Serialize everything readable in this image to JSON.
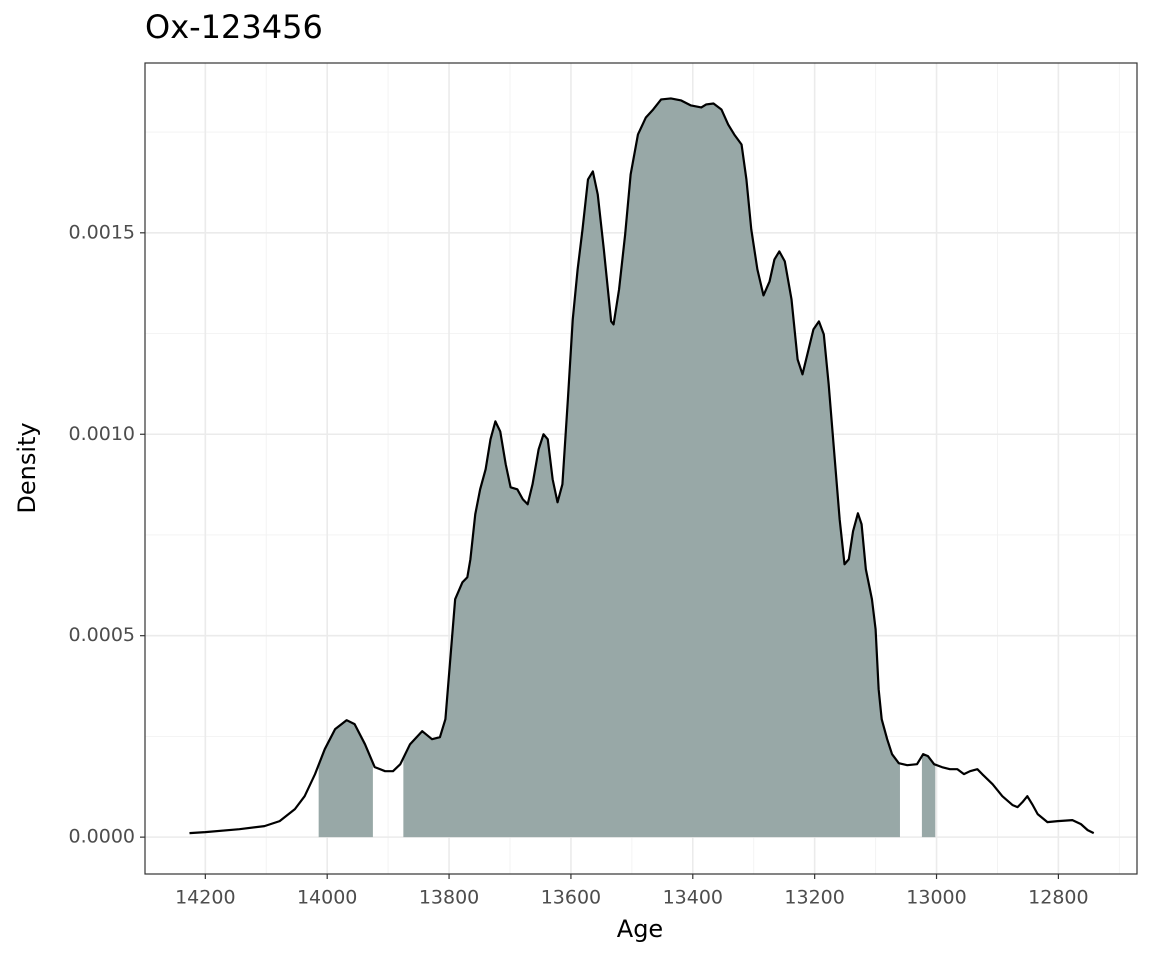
{
  "chart_data": {
    "type": "density",
    "title": "Ox-123456",
    "xlabel": "Age",
    "ylabel": "Density",
    "xlim": [
      14299,
      12671
    ],
    "xticks": [
      14200,
      14000,
      13800,
      13600,
      13400,
      13200,
      13000,
      12800
    ],
    "ylim": [
      -9.15e-05,
      0.0019215
    ],
    "yticks": [
      {
        "value": 0,
        "label": "0.0000"
      },
      {
        "value": 0.0005,
        "label": "0.0005"
      },
      {
        "value": 0.001,
        "label": "0.0010"
      },
      {
        "value": 0.0015,
        "label": "0.0015"
      }
    ],
    "grid": true,
    "minor_grid": true,
    "line_color": "#000000",
    "fill_color": "#98a8a7",
    "intervals": [
      [
        14014,
        13925
      ],
      [
        13875,
        13060
      ],
      [
        13024,
        13002
      ]
    ],
    "x": [
      14226,
      14200,
      14144,
      14103,
      14078,
      14053,
      14037,
      14020,
      14004,
      13987,
      13968,
      13955,
      13938,
      13922,
      13905,
      13892,
      13880,
      13864,
      13844,
      13828,
      13815,
      13806,
      13798,
      13790,
      13778,
      13770,
      13765,
      13757,
      13749,
      13740,
      13732,
      13724,
      13716,
      13707,
      13699,
      13688,
      13679,
      13671,
      13663,
      13653,
      13645,
      13638,
      13630,
      13622,
      13614,
      13605,
      13597,
      13589,
      13581,
      13572,
      13564,
      13556,
      13546,
      13534,
      13530,
      13521,
      13511,
      13502,
      13490,
      13477,
      13465,
      13452,
      13436,
      13419,
      13403,
      13386,
      13378,
      13366,
      13353,
      13342,
      13332,
      13320,
      13312,
      13304,
      13294,
      13284,
      13274,
      13266,
      13258,
      13249,
      13238,
      13228,
      13220,
      13212,
      13202,
      13193,
      13185,
      13177,
      13167,
      13159,
      13151,
      13144,
      13137,
      13129,
      13123,
      13116,
      13106,
      13100,
      13095,
      13090,
      13081,
      13073,
      13062,
      13048,
      13032,
      13022,
      13014,
      13004,
      12991,
      12978,
      12966,
      12955,
      12945,
      12933,
      12925,
      12908,
      12892,
      12875,
      12867,
      12859,
      12851,
      12843,
      12834,
      12818,
      12801,
      12777,
      12763,
      12752,
      12742
    ],
    "values": [
      9.9e-06,
      1.24e-05,
      1.98e-05,
      2.73e-05,
      3.97e-05,
      6.95e-05,
      0.0001017,
      0.0001563,
      0.0002183,
      0.000268,
      0.0002903,
      0.0002804,
      0.0002307,
      0.0001737,
      0.0001637,
      0.0001637,
      0.0001811,
      0.0002307,
      0.000263,
      0.0002431,
      0.0002481,
      0.0002928,
      0.0004416,
      0.0005905,
      0.0006327,
      0.0006451,
      0.0006897,
      0.0008014,
      0.0008634,
      0.000913,
      0.0009874,
      0.001032,
      0.001007,
      0.0009254,
      0.0008684,
      0.0008634,
      0.0008386,
      0.0008262,
      0.0008758,
      0.0009626,
      0.001,
      0.0009874,
      0.0008882,
      0.0008311,
      0.0008758,
      0.0010867,
      0.0012852,
      0.0014092,
      0.0015084,
      0.0016325,
      0.0016523,
      0.0015953,
      0.0014588,
      0.0012802,
      0.0012727,
      0.0013596,
      0.001496,
      0.0016449,
      0.0017441,
      0.0017863,
      0.0018062,
      0.001831,
      0.0018335,
      0.0018285,
      0.0018161,
      0.0018111,
      0.0018186,
      0.001821,
      0.0018062,
      0.001769,
      0.0017441,
      0.0017193,
      0.0016325,
      0.0015084,
      0.0014092,
      0.0013447,
      0.0013794,
      0.001434,
      0.0014539,
      0.0014291,
      0.0013348,
      0.0011859,
      0.0011487,
      0.0011983,
      0.0012603,
      0.0012802,
      0.0012479,
      0.0011239,
      0.0009378,
      0.000789,
      0.0006773,
      0.0006897,
      0.0007592,
      0.0008038,
      0.0007766,
      0.0006649,
      0.0005905,
      0.0005161,
      0.0003672,
      0.0002928,
      0.0002431,
      0.0002059,
      0.0001836,
      0.0001786,
      0.0001811,
      0.0002059,
      0.000201,
      0.0001811,
      0.0001737,
      0.0001687,
      0.0001687,
      0.0001563,
      0.0001637,
      0.0001687,
      0.0001563,
      0.0001315,
      0.0001017,
      7.94e-05,
      7.44e-05,
      8.68e-05,
      0.0001017,
      8.19e-05,
      5.71e-05,
      3.72e-05,
      3.97e-05,
      4.22e-05,
      3.23e-05,
      1.74e-05,
      9.9e-06
    ]
  }
}
